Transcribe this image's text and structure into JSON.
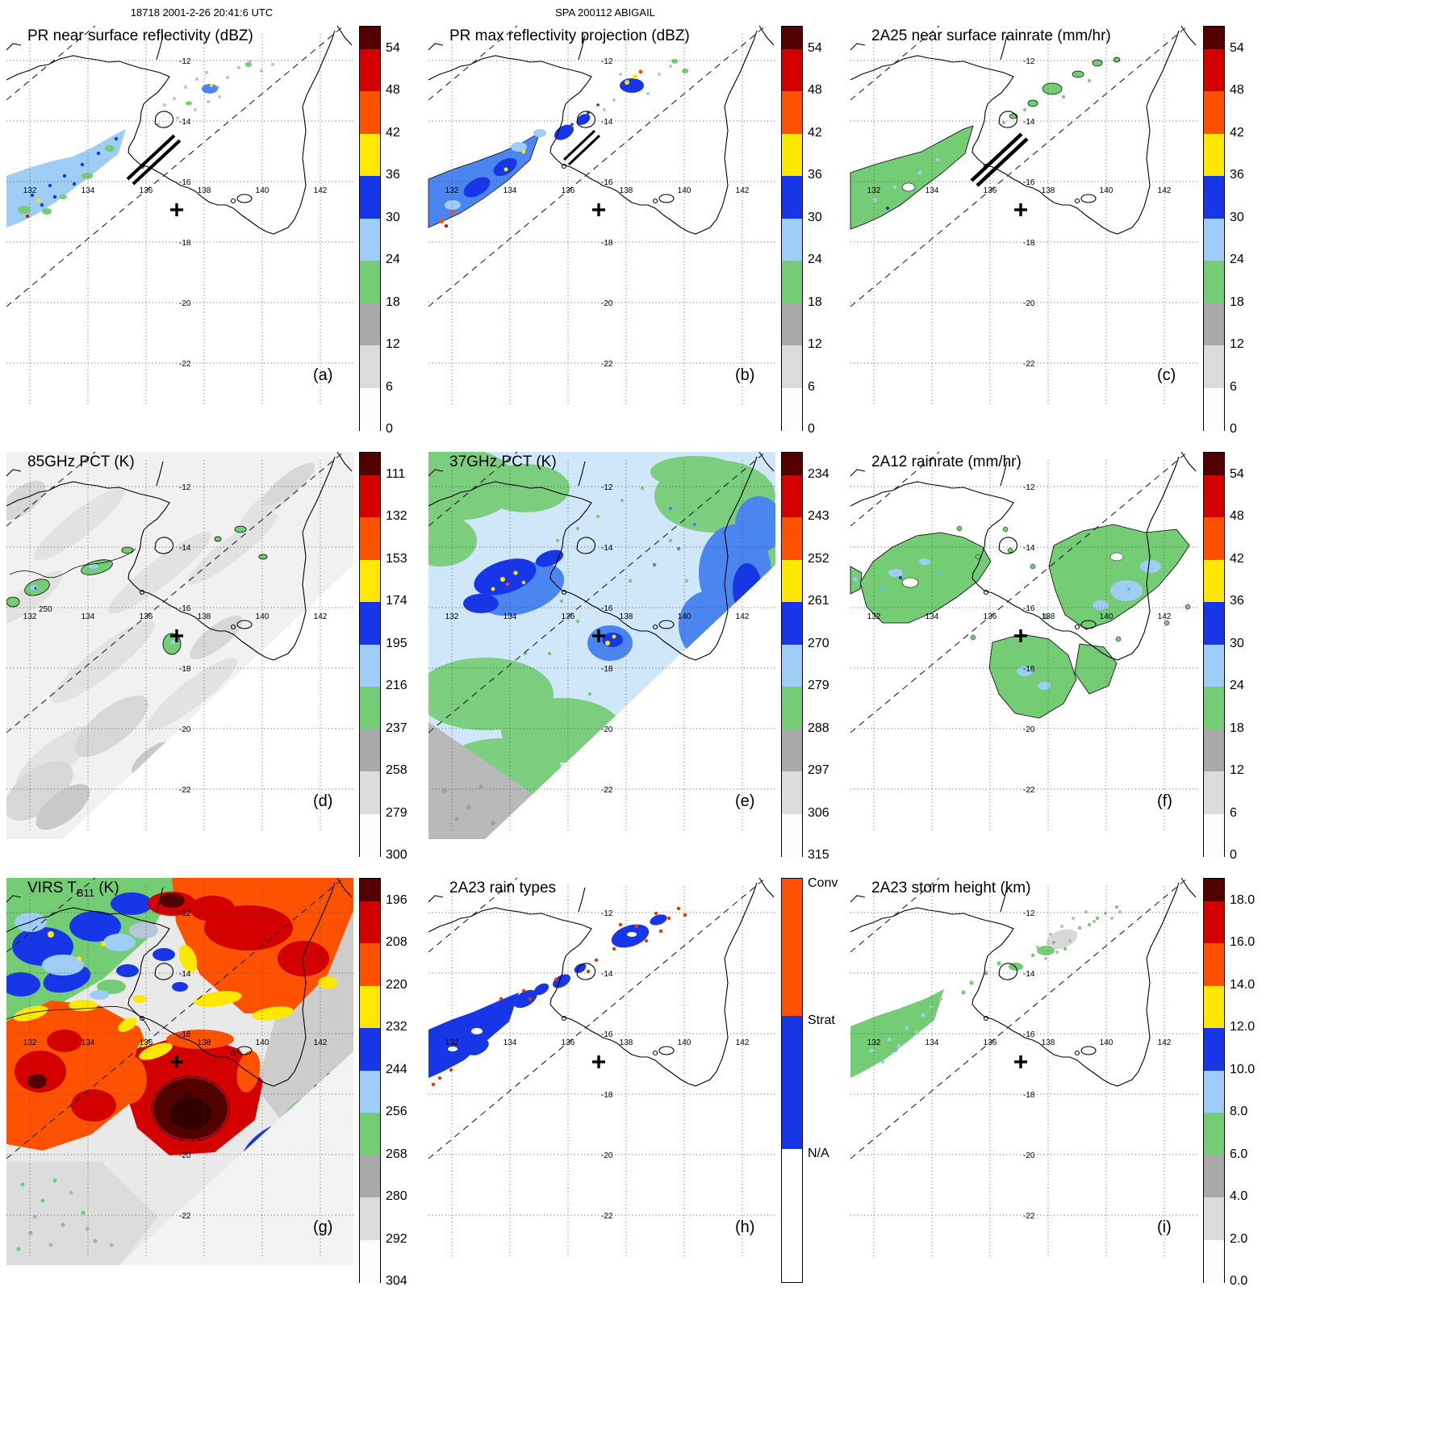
{
  "figure": {
    "orbit_time_label": "18718 2001-2-26 20:41:6 UTC",
    "storm_label": "SPA 200112 ABIGAIL"
  },
  "map_grid": {
    "lon_labels": [
      "132",
      "134",
      "136",
      "138",
      "140",
      "142"
    ],
    "lat_labels": [
      "-12",
      "-14",
      "-16",
      "-18",
      "-20",
      "-22"
    ]
  },
  "geo": {
    "lon_gridlines": [
      132,
      134,
      136,
      138,
      140,
      142
    ],
    "lat_gridlines": [
      -12,
      -14,
      -16,
      -18,
      -20,
      -22
    ],
    "approx_extent": {
      "lon_min": 131.2,
      "lon_max": 143.1,
      "lat_min": -23.6,
      "lat_max": -10.9
    },
    "storm_marker_approx": {
      "lon": 137.1,
      "lat": -16.9
    },
    "region": "Gulf of Carpentaria, northern Australia"
  },
  "palette": {
    "order": "top_to_bottom",
    "cap": "#520000",
    "scale": [
      "#d40000",
      "#ff5200",
      "#ffe800",
      "#1636e8",
      "#9ecdf5",
      "#74cd74",
      "#a9a9a9",
      "#dcdcdc",
      "#fcfcfc"
    ]
  },
  "annotations": {
    "contour_label": "250",
    "storm_marker": "+"
  },
  "chart_data": [
    {
      "panel": "a",
      "letter": "(a)",
      "type": "geo-heatmap",
      "title": "PR near surface reflectivity (dBZ)",
      "title_sub": "",
      "title_post": "",
      "variable": "near-surface radar reflectivity",
      "units": "dBZ",
      "colorbar": {
        "kind": "scale",
        "ticks": [
          "54",
          "48",
          "42",
          "36",
          "30",
          "24",
          "18",
          "12",
          "6",
          "0"
        ]
      },
      "description": "Narrow TRMM PR swath crossing SW to NE; scattered 15-35 dBZ echoes (light blue/blue) with green 18-24 dBZ patches densest at the SW end; two black parallel data-gap stripes near 136E 14.5S."
    },
    {
      "panel": "b",
      "letter": "(b)",
      "type": "geo-heatmap",
      "title": "PR max reflectivity projection (dBZ)",
      "title_sub": "",
      "title_post": "",
      "variable": "column-maximum radar reflectivity",
      "units": "dBZ",
      "colorbar": {
        "kind": "scale",
        "ticks": [
          "54",
          "48",
          "42",
          "36",
          "30",
          "24",
          "18",
          "12",
          "6",
          "0"
        ]
      },
      "description": "Column-maximum PR reflectivity along the same narrow swath; stronger, more contiguous 30-40 dBZ (blue) areas with isolated 36-48 dBZ (yellow/orange) convective cells."
    },
    {
      "panel": "c",
      "letter": "(c)",
      "type": "geo-heatmap",
      "title": "2A25 near surface rainrate (mm/hr)",
      "title_sub": "",
      "title_post": "",
      "variable": "PR 2A25 near-surface rain rate",
      "units": "mm/hr",
      "colorbar": {
        "kind": "scale",
        "ticks": [
          "54",
          "48",
          "42",
          "36",
          "30",
          "24",
          "18",
          "12",
          "6",
          "0"
        ]
      },
      "description": "PR 2A25 near-surface rain rate along the swath; mostly light rain up to ~6 mm/hr (green) outlined in black with a few 6-18 mm/hr (blue) pixels at the SW end."
    },
    {
      "panel": "d",
      "letter": "(d)",
      "type": "geo-heatmap",
      "title": "85GHz PCT (K)",
      "title_sub": "",
      "title_post": "",
      "variable": "TMI 85 GHz polarization-corrected temperature",
      "units": "K",
      "colorbar": {
        "kind": "scale",
        "ticks": [
          "111",
          "132",
          "153",
          "174",
          "195",
          "216",
          "237",
          "258",
          "279",
          "300"
        ]
      },
      "description": "Mostly 258-300 K (light gray) with 216-258 K ice-scattering depressions (green, black contours) NW of the Gulf and a small minimum near the storm centre; 250 K contour labelled."
    },
    {
      "panel": "e",
      "letter": "(e)",
      "type": "geo-heatmap",
      "title": "37GHz PCT (K)",
      "title_sub": "",
      "title_post": "",
      "variable": "TMI 37 GHz polarization-corrected temperature",
      "units": "K",
      "colorbar": {
        "kind": "scale",
        "ticks": [
          "234",
          "243",
          "252",
          "261",
          "270",
          "279",
          "288",
          "297",
          "306",
          "315"
        ]
      },
      "description": "Broad 270-285 K field (pale blue) with 280-297 K areas (green), 260-270 K cores (dark blue), a few ~255 K pixels (yellow), and >297 K (gray) in the SW corner."
    },
    {
      "panel": "f",
      "letter": "(f)",
      "type": "geo-heatmap",
      "title": "2A12 rainrate (mm/hr)",
      "title_sub": "",
      "title_post": "",
      "variable": "TMI 2A12 surface rain rate",
      "units": "mm/hr",
      "colorbar": {
        "kind": "scale",
        "ticks": [
          "54",
          "48",
          "42",
          "36",
          "30",
          "24",
          "18",
          "12",
          "6",
          "0"
        ]
      },
      "description": "Widespread light rain ~1-6 mm/hr (green) over and around the Gulf with embedded 6-12 mm/hr (light blue) patches."
    },
    {
      "panel": "g",
      "letter": "(g)",
      "type": "geo-heatmap",
      "title": "VIRS T",
      "title_sub": "B11",
      "title_post": " (K)",
      "variable": "VIRS 11 micron brightness temperature",
      "units": "K",
      "colorbar": {
        "kind": "scale",
        "ticks": [
          "196",
          "208",
          "220",
          "232",
          "244",
          "256",
          "268",
          "280",
          "292",
          "304"
        ]
      },
      "description": "Extensive cold cloud shield: <208 K (dark red/maroon) near the storm centre ~137E 17S, 208-232 K (red/orange/yellow), 232-268 K (blue/green) mottling NW, ~280-304 K (gray) clear air east."
    },
    {
      "panel": "h",
      "letter": "(h)",
      "type": "geo-categorical",
      "title": "2A23 rain types",
      "title_sub": "",
      "title_post": "",
      "variable": "PR 2A23 rain type classification",
      "units": "category",
      "colorbar": {
        "kind": "categories",
        "labels": [
          "Conv",
          "Strat",
          "N/A"
        ],
        "colors": [
          "#ff5200",
          "#1636e8",
          "#ffffff"
        ]
      },
      "description": "Predominantly stratiform (blue) echo along the PR swath with scattered convective (red) pixels, mainly on echo edges."
    },
    {
      "panel": "i",
      "letter": "(i)",
      "type": "geo-heatmap",
      "title": "2A23 storm height (km)",
      "title_sub": "",
      "title_post": "",
      "variable": "PR 2A23 storm (echo-top) height",
      "units": "km",
      "colorbar": {
        "kind": "scale",
        "ticks": [
          "18.0",
          "16.0",
          "14.0",
          "12.0",
          "10.0",
          "8.0",
          "6.0",
          "4.0",
          "2.0",
          "0.0"
        ]
      },
      "description": "Mostly 4-8 km echo tops (green) with 8-10 km (light blue) spots at the SW end and shallow/indeterminate tops (gray) to the NE."
    }
  ]
}
